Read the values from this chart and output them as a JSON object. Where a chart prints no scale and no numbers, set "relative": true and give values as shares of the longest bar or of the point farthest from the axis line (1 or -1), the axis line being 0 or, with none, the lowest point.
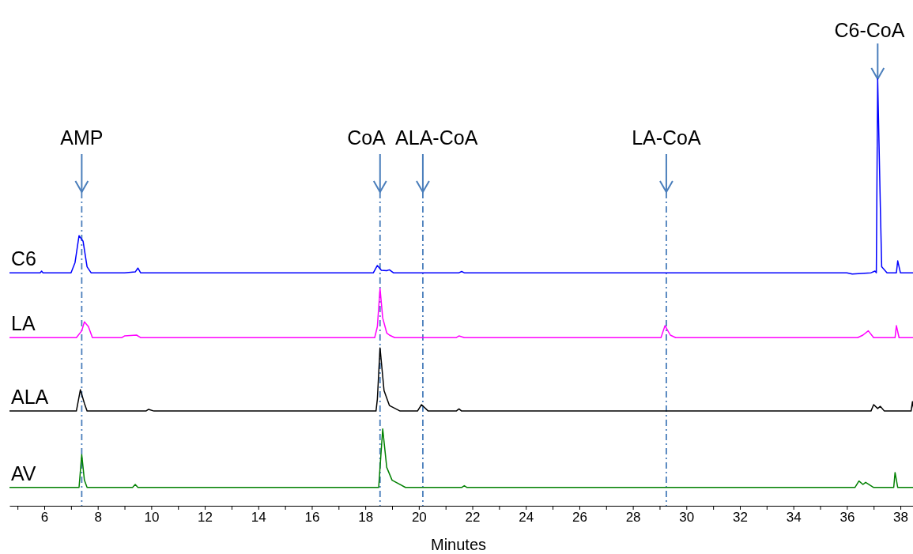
{
  "chart_data": {
    "type": "line",
    "relative": true,
    "xlabel": "Minutes",
    "xlim": [
      4.7,
      38.5
    ],
    "xticks": [
      {
        "value": 5,
        "label": null
      },
      6,
      {
        "value": 7,
        "label": null
      },
      8,
      {
        "value": 9,
        "label": null
      },
      10,
      {
        "value": 11,
        "label": null
      },
      12,
      {
        "value": 13,
        "label": null
      },
      14,
      {
        "value": 15,
        "label": null
      },
      16,
      {
        "value": 17,
        "label": null
      },
      18,
      {
        "value": 19,
        "label": null
      },
      20,
      {
        "value": 21,
        "label": null
      },
      22,
      {
        "value": 23,
        "label": null
      },
      24,
      {
        "value": 25,
        "label": null
      },
      26,
      {
        "value": 27,
        "label": null
      },
      28,
      {
        "value": 29,
        "label": null
      },
      30,
      {
        "value": 31,
        "label": null
      },
      32,
      {
        "value": 33,
        "label": null
      },
      34,
      {
        "value": 35,
        "label": null
      },
      36,
      {
        "value": 37,
        "label": null
      },
      38
    ],
    "tick_labels": "x",
    "grid": false,
    "marker": "none",
    "line_style": "solid",
    "series": [
      {
        "name": "C6",
        "color": "#0000ff",
        "x": [
          4.7,
          5.85,
          5.9,
          5.95,
          7.0,
          7.15,
          7.3,
          7.45,
          7.6,
          7.75,
          9.0,
          9.4,
          9.5,
          9.6,
          18.3,
          18.45,
          18.6,
          18.8,
          18.9,
          19.05,
          21.5,
          21.6,
          21.7,
          36.0,
          36.2,
          36.9,
          37.05,
          37.1,
          37.15,
          37.25,
          37.3,
          37.5,
          37.85,
          37.9,
          38.0,
          38.5
        ],
        "values": [
          0.546,
          0.546,
          0.55,
          0.546,
          0.546,
          0.57,
          0.633,
          0.62,
          0.56,
          0.546,
          0.546,
          0.548,
          0.557,
          0.546,
          0.546,
          0.563,
          0.552,
          0.551,
          0.553,
          0.546,
          0.546,
          0.549,
          0.546,
          0.546,
          0.543,
          0.546,
          0.55,
          0.546,
          1.0,
          0.7,
          0.56,
          0.546,
          0.546,
          0.574,
          0.546,
          0.546
        ]
      },
      {
        "name": "LA",
        "color": "#ff00ff",
        "x": [
          4.7,
          7.2,
          7.4,
          7.5,
          7.65,
          7.8,
          8.9,
          9.0,
          9.45,
          9.6,
          18.35,
          18.45,
          18.55,
          18.65,
          18.8,
          18.9,
          19.1,
          21.4,
          21.5,
          21.7,
          29.05,
          29.2,
          29.4,
          29.6,
          36.4,
          36.6,
          36.8,
          37.0,
          37.8,
          37.85,
          37.95,
          38.5
        ],
        "values": [
          0.394,
          0.394,
          0.41,
          0.431,
          0.42,
          0.394,
          0.394,
          0.398,
          0.4,
          0.394,
          0.394,
          0.42,
          0.509,
          0.44,
          0.405,
          0.4,
          0.394,
          0.394,
          0.398,
          0.394,
          0.394,
          0.422,
          0.4,
          0.394,
          0.394,
          0.4,
          0.41,
          0.394,
          0.394,
          0.422,
          0.394,
          0.394
        ]
      },
      {
        "name": "ALA",
        "color": "#000000",
        "x": [
          4.7,
          7.2,
          7.35,
          7.5,
          7.6,
          9.8,
          9.9,
          10.1,
          18.4,
          18.45,
          18.55,
          18.7,
          18.9,
          19.3,
          19.95,
          20.1,
          20.35,
          21.4,
          21.5,
          21.6,
          36.9,
          37.0,
          37.15,
          37.25,
          37.4,
          38.4,
          38.45,
          38.5
        ],
        "values": [
          0.222,
          0.222,
          0.272,
          0.24,
          0.222,
          0.222,
          0.226,
          0.222,
          0.222,
          0.25,
          0.37,
          0.27,
          0.235,
          0.222,
          0.222,
          0.237,
          0.222,
          0.222,
          0.227,
          0.222,
          0.222,
          0.237,
          0.228,
          0.233,
          0.222,
          0.222,
          0.244,
          0.225
        ]
      },
      {
        "name": "AV",
        "color": "#008000",
        "x": [
          4.7,
          7.3,
          7.4,
          7.5,
          7.6,
          9.3,
          9.4,
          9.5,
          18.5,
          18.55,
          18.65,
          18.8,
          19.0,
          19.5,
          21.6,
          21.7,
          21.8,
          36.3,
          36.45,
          36.6,
          36.7,
          37.0,
          37.75,
          37.8,
          37.9,
          38.5
        ],
        "values": [
          0.043,
          0.043,
          0.12,
          0.06,
          0.043,
          0.043,
          0.05,
          0.043,
          0.043,
          0.09,
          0.18,
          0.09,
          0.06,
          0.043,
          0.043,
          0.047,
          0.043,
          0.043,
          0.058,
          0.05,
          0.055,
          0.043,
          0.043,
          0.078,
          0.043,
          0.043
        ]
      }
    ],
    "ref_lines": [
      {
        "axis": "x",
        "value": 7.4,
        "label": "AMP",
        "color": "#4a7ebb",
        "line_style": "dashed"
      },
      {
        "axis": "x",
        "value": 18.55,
        "label": "CoA",
        "color": "#4a7ebb",
        "line_style": "dashed"
      },
      {
        "axis": "x",
        "value": 20.15,
        "label": "ALA-CoA",
        "color": "#4a7ebb",
        "line_style": "dashed"
      },
      {
        "axis": "x",
        "value": 29.25,
        "label": "LA-CoA",
        "color": "#4a7ebb",
        "line_style": "dashed"
      }
    ],
    "annotations": [
      {
        "text": "C6-CoA",
        "x": 37.15,
        "y": 1.0
      }
    ]
  }
}
